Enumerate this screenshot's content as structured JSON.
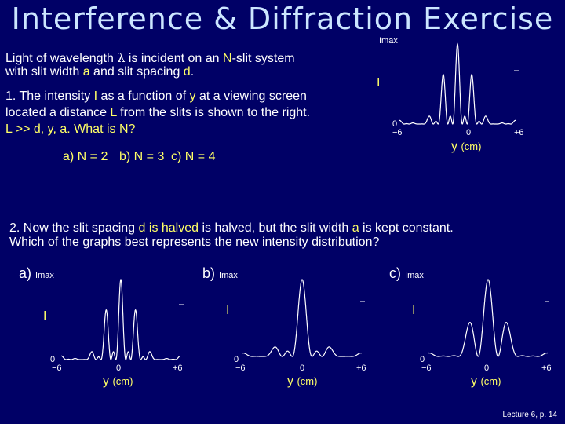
{
  "title": "Interference & Diffraction Exercise",
  "intro": {
    "line1_a": "Light of wavelength ",
    "lambda": "λ",
    "line1_b": " is incident on an ",
    "n": "N",
    "line1_c": "-slit system",
    "line2_a": "with slit width ",
    "a": "a",
    "line2_b": " and slit spacing ",
    "d": "d",
    "line2_c": "."
  },
  "q1": {
    "l1_a": "1. The intensity ",
    "I": "I",
    "l1_b": " as a function of ",
    "y": "y",
    "l1_c": " at a viewing screen",
    "l2_a": "located a distance ",
    "L": "L",
    "l2_b": " from the slits is shown to the right.",
    "l3": "L >> d, y, a.    What is N?"
  },
  "answers": {
    "a": "a) N = 2",
    "b": "b) N = 3",
    "c": "c) N = 4"
  },
  "q2": {
    "l1_a": "2.  Now the slit spacing ",
    "d": "d",
    "l1_b": " is halved, but the slit width ",
    "a": "a",
    "l1_c": " is kept constant.",
    "l2": "Which of the graphs best represents the new intensity distribution?"
  },
  "graph_labels": {
    "imax": "Imax",
    "i": "I",
    "zero": "0",
    "minus6": "−6",
    "plus6": "+6",
    "y": "y",
    "ycm": "(cm)"
  },
  "options": {
    "a": "a)",
    "b": "b)",
    "c": "c)"
  },
  "footer": "Lecture 6, p. 14",
  "colors": {
    "background": "#000066",
    "highlight": "#ffff66",
    "curve": "#ffffff"
  }
}
